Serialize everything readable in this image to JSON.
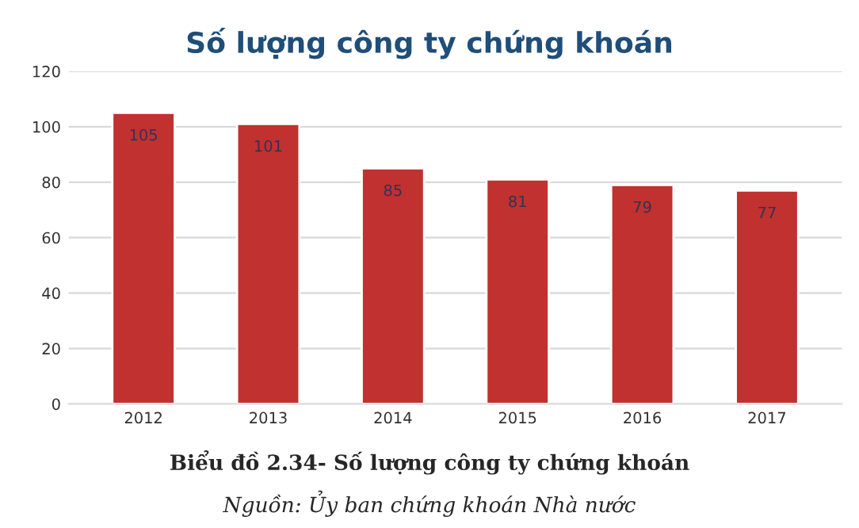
{
  "chart_data": {
    "type": "bar",
    "title": "Số lượng công ty chứng khoán",
    "categories": [
      "2012",
      "2013",
      "2014",
      "2015",
      "2016",
      "2017"
    ],
    "values": [
      105,
      101,
      85,
      81,
      79,
      77
    ],
    "color": "#c0312f",
    "ylim": [
      0,
      120
    ],
    "yticks": [
      0,
      20,
      40,
      60,
      80,
      100,
      120
    ],
    "grid": "y",
    "data_labels": true,
    "annotations": [
      "Biểu đồ 2.34- Số lượng công ty chứng khoán",
      "Nguồn: Ủy ban chứng khoán Nhà nước"
    ]
  }
}
